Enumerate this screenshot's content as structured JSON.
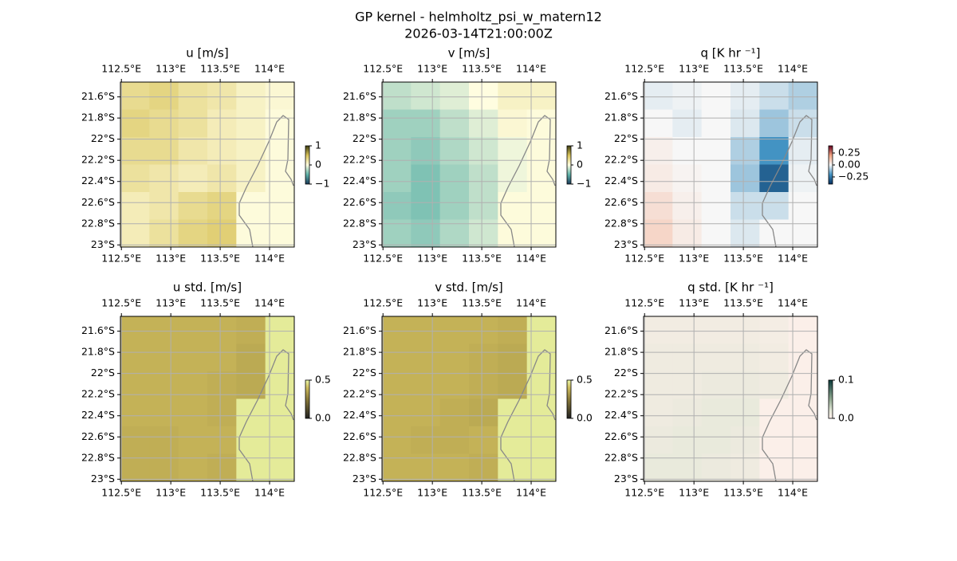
{
  "title": "GP kernel - helmholtz_psi_w_matern12",
  "subtitle": "2026-03-14T21:00:00Z",
  "chart_data": [
    {
      "type": "heatmap",
      "title": "u [m/s]",
      "xlim": [
        112.49,
        114.25
      ],
      "ylim": [
        -23.02,
        -21.46
      ],
      "xticks": [
        {
          "value": 112.5,
          "label": "112.5°E"
        },
        {
          "value": 113,
          "label": "113°E"
        },
        {
          "value": 113.5,
          "label": "113.5°E"
        },
        {
          "value": 114,
          "label": "114°E"
        }
      ],
      "yticks": [
        {
          "value": -21.6,
          "label": "21.6°S"
        },
        {
          "value": -21.8,
          "label": "21.8°S"
        },
        {
          "value": -22,
          "label": "22°S"
        },
        {
          "value": -22.2,
          "label": "22.2°S"
        },
        {
          "value": -22.4,
          "label": "22.4°S"
        },
        {
          "value": -22.6,
          "label": "22.6°S"
        },
        {
          "value": -22.8,
          "label": "22.8°S"
        },
        {
          "value": -23,
          "label": "23°S"
        }
      ],
      "z": [
        [
          0.3,
          0.35,
          0.25,
          0.2,
          0.1,
          0.05
        ],
        [
          0.35,
          0.3,
          0.25,
          0.15,
          0.1,
          0.02
        ],
        [
          0.3,
          0.3,
          0.2,
          0.15,
          0.1,
          0.02
        ],
        [
          0.25,
          0.2,
          0.15,
          0.2,
          0.1,
          0.02
        ],
        [
          0.15,
          0.2,
          0.3,
          0.35,
          0.02,
          0.02
        ],
        [
          0.15,
          0.25,
          0.35,
          0.4,
          0.02,
          0.02
        ]
      ],
      "vlim": [
        -1,
        1
      ],
      "colormap": [
        {
          "value": -1,
          "color": "#1a3a5a"
        },
        {
          "value": -0.5,
          "color": "#5fb3a9"
        },
        {
          "value": 0,
          "color": "#fffde0"
        },
        {
          "value": 0.5,
          "color": "#d9c45a"
        },
        {
          "value": 1,
          "color": "#3c3c10"
        }
      ],
      "cbar_ticks": [
        1,
        0,
        {
          "value": -1,
          "label": "−1"
        }
      ]
    },
    {
      "type": "heatmap",
      "title": "v [m/s]",
      "xlim": [
        112.49,
        114.25
      ],
      "ylim": [
        -23.02,
        -21.46
      ],
      "xticks": [
        {
          "value": 112.5,
          "label": "112.5°E"
        },
        {
          "value": 113,
          "label": "113°E"
        },
        {
          "value": 113.5,
          "label": "113.5°E"
        },
        {
          "value": 114,
          "label": "114°E"
        }
      ],
      "yticks": [
        {
          "value": -21.6,
          "label": "21.6°S"
        },
        {
          "value": -21.8,
          "label": "21.8°S"
        },
        {
          "value": -22,
          "label": "22°S"
        },
        {
          "value": -22.2,
          "label": "22.2°S"
        },
        {
          "value": -22.4,
          "label": "22.4°S"
        },
        {
          "value": -22.6,
          "label": "22.6°S"
        },
        {
          "value": -22.8,
          "label": "22.8°S"
        },
        {
          "value": -23,
          "label": "23°S"
        }
      ],
      "z": [
        [
          -0.2,
          -0.15,
          -0.1,
          0,
          0.1,
          0.1
        ],
        [
          -0.3,
          -0.3,
          -0.2,
          -0.1,
          0.05,
          0.02
        ],
        [
          -0.3,
          -0.35,
          -0.25,
          -0.15,
          -0.05,
          0.02
        ],
        [
          -0.3,
          -0.4,
          -0.3,
          -0.2,
          -0.05,
          0.02
        ],
        [
          -0.35,
          -0.4,
          -0.3,
          -0.2,
          0.02,
          0.02
        ],
        [
          -0.3,
          -0.35,
          -0.25,
          -0.15,
          0.02,
          0.02
        ]
      ],
      "vlim": [
        -1,
        1
      ],
      "colormap": [
        {
          "value": -1,
          "color": "#1a3a5a"
        },
        {
          "value": -0.5,
          "color": "#5fb3a9"
        },
        {
          "value": 0,
          "color": "#fffde0"
        },
        {
          "value": 0.5,
          "color": "#d9c45a"
        },
        {
          "value": 1,
          "color": "#3c3c10"
        }
      ],
      "cbar_ticks": [
        1,
        0,
        {
          "value": -1,
          "label": "−1"
        }
      ]
    },
    {
      "type": "heatmap",
      "title": "q [K hr ⁻¹]",
      "xlim": [
        112.49,
        114.25
      ],
      "ylim": [
        -23.02,
        -21.46
      ],
      "xticks": [
        {
          "value": 112.5,
          "label": "112.5°E"
        },
        {
          "value": 113,
          "label": "113°E"
        },
        {
          "value": 113.5,
          "label": "113.5°E"
        },
        {
          "value": 114,
          "label": "114°E"
        }
      ],
      "yticks": [
        {
          "value": -21.6,
          "label": "21.6°S"
        },
        {
          "value": -21.8,
          "label": "21.8°S"
        },
        {
          "value": -22,
          "label": "22°S"
        },
        {
          "value": -22.2,
          "label": "22.2°S"
        },
        {
          "value": -22.4,
          "label": "22.4°S"
        },
        {
          "value": -22.6,
          "label": "22.6°S"
        },
        {
          "value": -22.8,
          "label": "22.8°S"
        },
        {
          "value": -23,
          "label": "23°S"
        }
      ],
      "z": [
        [
          -0.02,
          -0.01,
          0,
          -0.02,
          -0.05,
          -0.08
        ],
        [
          0,
          -0.02,
          0,
          -0.03,
          -0.1,
          -0.05
        ],
        [
          0.02,
          0,
          0,
          -0.08,
          -0.2,
          -0.02
        ],
        [
          0.03,
          0.01,
          0,
          -0.1,
          -0.3,
          -0.01
        ],
        [
          0.06,
          0.02,
          0,
          -0.05,
          -0.05,
          0
        ],
        [
          0.08,
          0.03,
          0,
          -0.03,
          0,
          0
        ]
      ],
      "vlim": [
        -0.4,
        0.4
      ],
      "colormap": [
        {
          "value": -0.4,
          "color": "#053061"
        },
        {
          "value": -0.2,
          "color": "#4393c3"
        },
        {
          "value": 0,
          "color": "#f7f7f7"
        },
        {
          "value": 0.2,
          "color": "#f4a582"
        },
        {
          "value": 0.4,
          "color": "#67001f"
        }
      ],
      "cbar_ticks": [
        0.25,
        {
          "value": 0,
          "label": "0.00"
        },
        {
          "value": -0.25,
          "label": "−0.25"
        }
      ]
    },
    {
      "type": "heatmap",
      "title": "u std. [m/s]",
      "xlim": [
        112.49,
        114.25
      ],
      "ylim": [
        -23.02,
        -21.46
      ],
      "xticks": [
        {
          "value": 112.5,
          "label": "112.5°E"
        },
        {
          "value": 113,
          "label": "113°E"
        },
        {
          "value": 113.5,
          "label": "113.5°E"
        },
        {
          "value": 114,
          "label": "114°E"
        }
      ],
      "yticks": [
        {
          "value": -21.6,
          "label": "21.6°S"
        },
        {
          "value": -21.8,
          "label": "21.8°S"
        },
        {
          "value": -22,
          "label": "22°S"
        },
        {
          "value": -22.2,
          "label": "22.2°S"
        },
        {
          "value": -22.4,
          "label": "22.4°S"
        },
        {
          "value": -22.6,
          "label": "22.6°S"
        },
        {
          "value": -22.8,
          "label": "22.8°S"
        },
        {
          "value": -23,
          "label": "23°S"
        }
      ],
      "z": [
        [
          0.38,
          0.38,
          0.38,
          0.38,
          0.37,
          0.48
        ],
        [
          0.38,
          0.38,
          0.38,
          0.38,
          0.36,
          0.48
        ],
        [
          0.38,
          0.38,
          0.38,
          0.37,
          0.36,
          0.48
        ],
        [
          0.38,
          0.38,
          0.38,
          0.37,
          0.48,
          0.48
        ],
        [
          0.37,
          0.37,
          0.38,
          0.38,
          0.48,
          0.48
        ],
        [
          0.37,
          0.37,
          0.38,
          0.37,
          0.48,
          0.48
        ]
      ],
      "vlim": [
        0,
        0.5
      ],
      "colormap": [
        {
          "value": 0,
          "color": "#202020"
        },
        {
          "value": 0.25,
          "color": "#8a7a3a"
        },
        {
          "value": 0.4,
          "color": "#cdbb5c"
        },
        {
          "value": 0.5,
          "color": "#eaf7a8"
        }
      ],
      "cbar_ticks": [
        0.5,
        {
          "value": 0,
          "label": "0.0"
        }
      ]
    },
    {
      "type": "heatmap",
      "title": "v std. [m/s]",
      "xlim": [
        112.49,
        114.25
      ],
      "ylim": [
        -23.02,
        -21.46
      ],
      "xticks": [
        {
          "value": 112.5,
          "label": "112.5°E"
        },
        {
          "value": 113,
          "label": "113°E"
        },
        {
          "value": 113.5,
          "label": "113.5°E"
        },
        {
          "value": 114,
          "label": "114°E"
        }
      ],
      "yticks": [
        {
          "value": -21.6,
          "label": "21.6°S"
        },
        {
          "value": -21.8,
          "label": "21.8°S"
        },
        {
          "value": -22,
          "label": "22°S"
        },
        {
          "value": -22.2,
          "label": "22.2°S"
        },
        {
          "value": -22.4,
          "label": "22.4°S"
        },
        {
          "value": -22.6,
          "label": "22.6°S"
        },
        {
          "value": -22.8,
          "label": "22.8°S"
        },
        {
          "value": -23,
          "label": "23°S"
        }
      ],
      "z": [
        [
          0.38,
          0.38,
          0.38,
          0.38,
          0.37,
          0.48
        ],
        [
          0.38,
          0.38,
          0.38,
          0.37,
          0.36,
          0.48
        ],
        [
          0.38,
          0.38,
          0.38,
          0.37,
          0.36,
          0.48
        ],
        [
          0.38,
          0.38,
          0.37,
          0.36,
          0.48,
          0.48
        ],
        [
          0.38,
          0.37,
          0.37,
          0.38,
          0.48,
          0.48
        ],
        [
          0.38,
          0.38,
          0.38,
          0.37,
          0.48,
          0.48
        ]
      ],
      "vlim": [
        0,
        0.5
      ],
      "colormap": [
        {
          "value": 0,
          "color": "#202020"
        },
        {
          "value": 0.25,
          "color": "#8a7a3a"
        },
        {
          "value": 0.4,
          "color": "#cdbb5c"
        },
        {
          "value": 0.5,
          "color": "#eaf7a8"
        }
      ],
      "cbar_ticks": [
        0.5,
        {
          "value": 0,
          "label": "0.0"
        }
      ]
    },
    {
      "type": "heatmap",
      "title": "q std. [K hr ⁻¹]",
      "xlim": [
        112.49,
        114.25
      ],
      "ylim": [
        -23.02,
        -21.46
      ],
      "xticks": [
        {
          "value": 112.5,
          "label": "112.5°E"
        },
        {
          "value": 113,
          "label": "113°E"
        },
        {
          "value": 113.5,
          "label": "113.5°E"
        },
        {
          "value": 114,
          "label": "114°E"
        }
      ],
      "yticks": [
        {
          "value": -21.6,
          "label": "21.6°S"
        },
        {
          "value": -21.8,
          "label": "21.8°S"
        },
        {
          "value": -22,
          "label": "22°S"
        },
        {
          "value": -22.2,
          "label": "22.2°S"
        },
        {
          "value": -22.4,
          "label": "22.4°S"
        },
        {
          "value": -22.6,
          "label": "22.6°S"
        },
        {
          "value": -22.8,
          "label": "22.8°S"
        },
        {
          "value": -23,
          "label": "23°S"
        }
      ],
      "z": [
        [
          0.01,
          0.01,
          0.01,
          0.01,
          0.008,
          0.003
        ],
        [
          0.012,
          0.012,
          0.012,
          0.012,
          0.01,
          0.003
        ],
        [
          0.012,
          0.012,
          0.014,
          0.014,
          0.012,
          0.003
        ],
        [
          0.012,
          0.014,
          0.016,
          0.016,
          0.003,
          0.003
        ],
        [
          0.014,
          0.016,
          0.016,
          0.014,
          0.003,
          0.003
        ],
        [
          0.016,
          0.016,
          0.014,
          0.012,
          0.003,
          0.003
        ]
      ],
      "vlim": [
        0,
        0.1
      ],
      "colormap": [
        {
          "value": 0,
          "color": "#fff0ec"
        },
        {
          "value": 0.02,
          "color": "#e4e8d8"
        },
        {
          "value": 0.05,
          "color": "#90a890"
        },
        {
          "value": 0.1,
          "color": "#0a3a3a"
        }
      ],
      "cbar_ticks": [
        0.1,
        {
          "value": 0,
          "label": "0.0"
        }
      ]
    }
  ]
}
